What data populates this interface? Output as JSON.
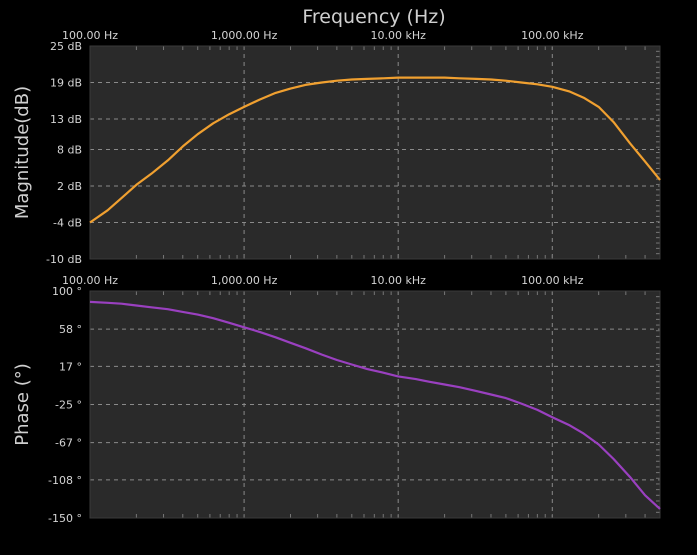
{
  "chart_data": [
    {
      "type": "line",
      "title": "Frequency (Hz)",
      "ylabel": "Magnitude(dB)",
      "xscale": "log",
      "xlim": [
        100,
        500000
      ],
      "ylim": [
        -10,
        25
      ],
      "grid": true,
      "xticks": [
        {
          "value": 100,
          "label": "100.00 Hz"
        },
        {
          "value": 1000,
          "label": "1,000.00 Hz"
        },
        {
          "value": 10000,
          "label": "10.00 kHz"
        },
        {
          "value": 100000,
          "label": "100.00 kHz"
        }
      ],
      "yticks": [
        {
          "value": 25,
          "label": "25 dB"
        },
        {
          "value": 19,
          "label": "19 dB"
        },
        {
          "value": 13,
          "label": "13 dB"
        },
        {
          "value": 8,
          "label": "8 dB"
        },
        {
          "value": 2,
          "label": "2 dB"
        },
        {
          "value": -4,
          "label": "-4 dB"
        },
        {
          "value": -10,
          "label": "-10 dB"
        }
      ],
      "series": [
        {
          "color": "#f0a030",
          "x": [
            100,
            130,
            160,
            200,
            250,
            320,
            400,
            500,
            630,
            800,
            1000,
            1260,
            1600,
            2000,
            2500,
            3200,
            4000,
            5000,
            6300,
            8000,
            10000,
            13000,
            16000,
            20000,
            25000,
            32000,
            40000,
            50000,
            63000,
            80000,
            100000,
            130000,
            160000,
            200000,
            250000,
            320000,
            400000,
            500000
          ],
          "y": [
            -4,
            -2,
            0,
            2.2,
            4,
            6.2,
            8.5,
            10.5,
            12.3,
            13.8,
            15,
            16.2,
            17.3,
            18,
            18.6,
            19,
            19.3,
            19.5,
            19.6,
            19.7,
            19.8,
            19.8,
            19.8,
            19.8,
            19.7,
            19.6,
            19.5,
            19.3,
            19,
            18.7,
            18.3,
            17.5,
            16.5,
            15,
            12.5,
            9,
            6,
            3
          ]
        }
      ]
    },
    {
      "type": "line",
      "ylabel": "Phase (°)",
      "xscale": "log",
      "xlim": [
        100,
        500000
      ],
      "ylim": [
        -150,
        100
      ],
      "grid": true,
      "xticks": [
        {
          "value": 100,
          "label": "100.00 Hz"
        },
        {
          "value": 1000,
          "label": "1,000.00 Hz"
        },
        {
          "value": 10000,
          "label": "10.00 kHz"
        },
        {
          "value": 100000,
          "label": "100.00 kHz"
        }
      ],
      "yticks": [
        {
          "value": 100,
          "label": "100 °"
        },
        {
          "value": 58,
          "label": "58 °"
        },
        {
          "value": 17,
          "label": "17 °"
        },
        {
          "value": -25,
          "label": "-25 °"
        },
        {
          "value": -67,
          "label": "-67 °"
        },
        {
          "value": -108,
          "label": "-108 °"
        },
        {
          "value": -150,
          "label": "-150 °"
        }
      ],
      "series": [
        {
          "color": "#9a40c0",
          "x": [
            100,
            130,
            160,
            200,
            250,
            320,
            400,
            500,
            630,
            800,
            1000,
            1260,
            1600,
            2000,
            2500,
            3200,
            4000,
            5000,
            6300,
            8000,
            10000,
            13000,
            16000,
            20000,
            25000,
            32000,
            40000,
            50000,
            63000,
            80000,
            100000,
            130000,
            160000,
            200000,
            250000,
            320000,
            400000,
            500000
          ],
          "y": [
            88,
            87,
            86,
            84,
            82,
            80,
            77,
            74,
            70,
            65,
            60,
            55,
            49,
            43,
            37,
            30,
            24,
            19,
            14,
            10,
            6,
            3,
            0,
            -3,
            -6,
            -10,
            -14,
            -18,
            -24,
            -31,
            -39,
            -48,
            -57,
            -69,
            -85,
            -105,
            -125,
            -140
          ]
        }
      ]
    }
  ]
}
